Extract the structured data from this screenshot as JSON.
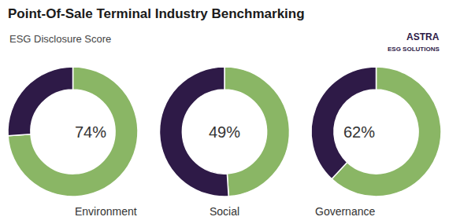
{
  "chart_data": {
    "type": "donut",
    "title": "Point-Of-Sale Terminal Industry Benchmarking",
    "subtitle": "ESG Disclosure Score",
    "categories": [
      "Environment",
      "Social",
      "Governance"
    ],
    "values": [
      74,
      49,
      62
    ],
    "value_labels": [
      "74%",
      "49%",
      "62%"
    ],
    "colors": [
      "#8ab665",
      "#2e1a47"
    ],
    "annotations": [
      "ASTRA",
      "ESG SOLUTIONS"
    ]
  }
}
